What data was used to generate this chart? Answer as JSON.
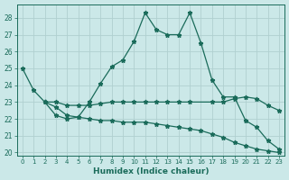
{
  "xlabel": "Humidex (Indice chaleur)",
  "background_color": "#cbe8e8",
  "grid_color": "#b0d0d0",
  "line_color": "#1a6b5a",
  "xlim": [
    -0.5,
    23.5
  ],
  "ylim": [
    19.8,
    28.8
  ],
  "yticks": [
    20,
    21,
    22,
    23,
    24,
    25,
    26,
    27,
    28
  ],
  "xticks": [
    0,
    1,
    2,
    3,
    4,
    5,
    6,
    7,
    8,
    9,
    10,
    11,
    12,
    13,
    14,
    15,
    16,
    17,
    18,
    19,
    20,
    21,
    22,
    23
  ],
  "line1_x": [
    0,
    1,
    2,
    3,
    4,
    5,
    6,
    7,
    8,
    9,
    10,
    11,
    12,
    13,
    14,
    15,
    16,
    17,
    18,
    19,
    20,
    21,
    22,
    23
  ],
  "line1_y": [
    25.0,
    23.7,
    23.0,
    22.2,
    22.0,
    22.1,
    23.0,
    24.1,
    25.1,
    25.5,
    26.6,
    28.3,
    27.3,
    27.0,
    27.0,
    28.3,
    26.5,
    24.3,
    23.3,
    23.3,
    21.9,
    21.5,
    20.7,
    20.2
  ],
  "line2_x": [
    2,
    3,
    4,
    5,
    6,
    7,
    8,
    9,
    10,
    11,
    12,
    13,
    14,
    15,
    17,
    18,
    19,
    20,
    21,
    22,
    23
  ],
  "line2_y": [
    23.0,
    23.0,
    22.8,
    22.8,
    22.8,
    22.9,
    23.0,
    23.0,
    23.0,
    23.0,
    23.0,
    23.0,
    23.0,
    23.0,
    23.0,
    23.0,
    23.2,
    23.3,
    23.2,
    22.8,
    22.5
  ],
  "line3_x": [
    2,
    3,
    4,
    5,
    6,
    7,
    8,
    9,
    10,
    11,
    12,
    13,
    14,
    15,
    16,
    17,
    18,
    19,
    20,
    21,
    22,
    23
  ],
  "line3_y": [
    23.0,
    22.7,
    22.2,
    22.1,
    22.0,
    21.9,
    21.9,
    21.8,
    21.8,
    21.8,
    21.7,
    21.6,
    21.5,
    21.4,
    21.3,
    21.1,
    20.9,
    20.6,
    20.4,
    20.2,
    20.1,
    20.0
  ]
}
